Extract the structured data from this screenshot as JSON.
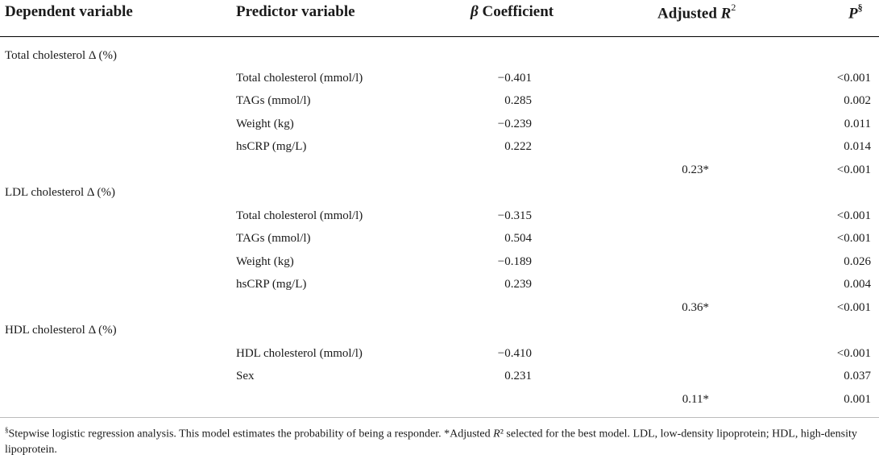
{
  "header": {
    "dependent": "Dependent variable",
    "predictor": "Predictor variable",
    "beta_symbol": "β",
    "beta_word": " Coefficient",
    "adj_word": "Adjusted ",
    "adj_r": "R",
    "adj_sup": "2",
    "p_letter": "P",
    "p_sup": "§"
  },
  "groups": [
    {
      "label": "Total cholesterol Δ (%)",
      "rows": [
        {
          "predictor": "Total cholesterol (mmol/l)",
          "beta": "−0.401",
          "p": "<0.001"
        },
        {
          "predictor": "TAGs (mmol/l)",
          "beta": "0.285",
          "p": "0.002"
        },
        {
          "predictor": "Weight (kg)",
          "beta": "−0.239",
          "p": "0.011"
        },
        {
          "predictor": "hsCRP (mg/L)",
          "beta": "0.222",
          "p": "0.014"
        }
      ],
      "model": {
        "adj_r2": "0.23*",
        "p": "<0.001"
      }
    },
    {
      "label": "LDL cholesterol Δ (%)",
      "rows": [
        {
          "predictor": "Total cholesterol (mmol/l)",
          "beta": "−0.315",
          "p": "<0.001"
        },
        {
          "predictor": "TAGs (mmol/l)",
          "beta": "0.504",
          "p": "<0.001"
        },
        {
          "predictor": "Weight (kg)",
          "beta": "−0.189",
          "p": "0.026"
        },
        {
          "predictor": "hsCRP (mg/L)",
          "beta": "0.239",
          "p": "0.004"
        }
      ],
      "model": {
        "adj_r2": "0.36*",
        "p": "<0.001"
      }
    },
    {
      "label": "HDL cholesterol Δ (%)",
      "rows": [
        {
          "predictor": "HDL cholesterol (mmol/l)",
          "beta": "−0.410",
          "p": "<0.001"
        },
        {
          "predictor": "Sex",
          "beta": "0.231",
          "p": "0.037"
        }
      ],
      "model": {
        "adj_r2": "0.11*",
        "p": "0.001"
      }
    }
  ],
  "footnote": {
    "sup": "§",
    "part1": "Stepwise logistic regression analysis. This model estimates the probability of being a responder. *Adjusted ",
    "r": "R",
    "part2": "² selected for the best model. LDL, low-density lipoprotein; HDL, high-density lipoprotein."
  }
}
